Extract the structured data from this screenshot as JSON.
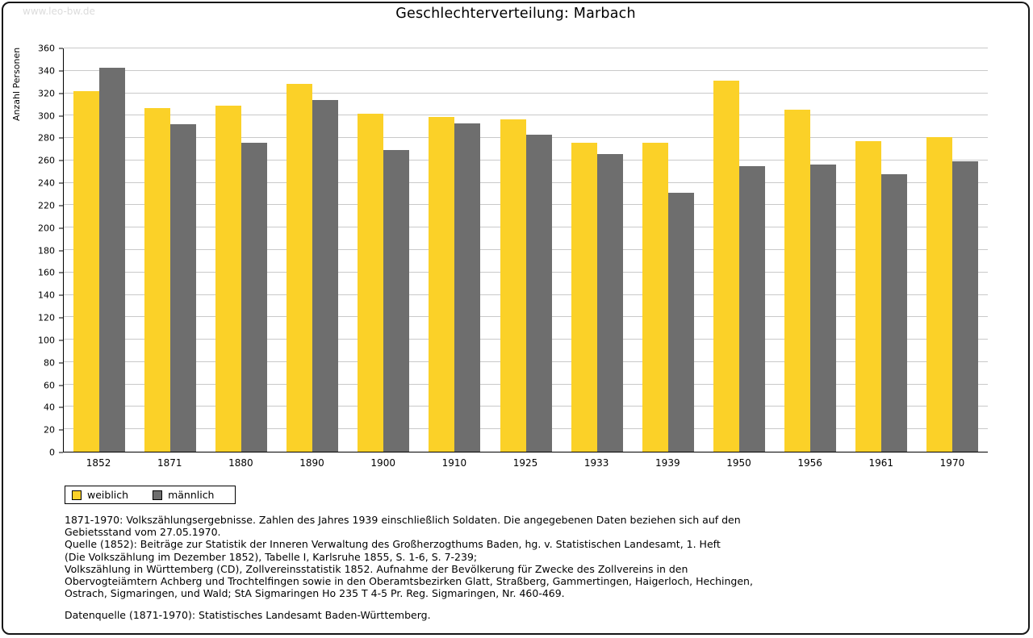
{
  "watermark": "www.leo-bw.de",
  "chart_data": {
    "type": "bar",
    "title": "Geschlechterverteilung: Marbach",
    "xlabel": "",
    "ylabel": "Anzahl Personen",
    "ylim": [
      0,
      360
    ],
    "ytick_step": 20,
    "grid": true,
    "legend_position": "bottom-left",
    "categories": [
      "1852",
      "1871",
      "1880",
      "1890",
      "1900",
      "1910",
      "1925",
      "1933",
      "1939",
      "1950",
      "1956",
      "1961",
      "1970"
    ],
    "series": [
      {
        "name": "weiblich",
        "color": "#FBD128",
        "values": [
          322,
          307,
          309,
          328,
          302,
          299,
          297,
          276,
          276,
          331,
          305,
          277,
          281
        ]
      },
      {
        "name": "männlich",
        "color": "#6E6E6E",
        "values": [
          343,
          292,
          276,
          314,
          269,
          293,
          283,
          266,
          231,
          255,
          256,
          248,
          259
        ]
      }
    ]
  },
  "notes": {
    "lines": [
      "1871-1970: Volkszählungsergebnisse. Zahlen des Jahres 1939 einschließlich Soldaten. Die angegebenen Daten beziehen sich auf den",
      "Gebietsstand vom 27.05.1970.",
      "Quelle (1852): Beiträge zur Statistik der Inneren Verwaltung des Großherzogthums Baden, hg. v. Statistischen Landesamt, 1. Heft",
      "(Die Volkszählung im Dezember 1852), Tabelle I, Karlsruhe 1855, S. 1-6, S. 7-239;",
      "Volkszählung in Württemberg (CD), Zollvereinsstatistik 1852. Aufnahme der Bevölkerung für Zwecke des Zollvereins in den",
      "Obervogteiämtern Achberg und Trochtelfingen sowie in den Oberamtsbezirken Glatt, Straßberg, Gammertingen, Haigerloch, Hechingen,",
      "Ostrach, Sigmaringen, und Wald; StA Sigmaringen Ho 235 T 4-5 Pr. Reg. Sigmaringen, Nr. 460-469.",
      "",
      "Datenquelle (1871-1970): Statistisches Landesamt Baden-Württemberg."
    ]
  }
}
